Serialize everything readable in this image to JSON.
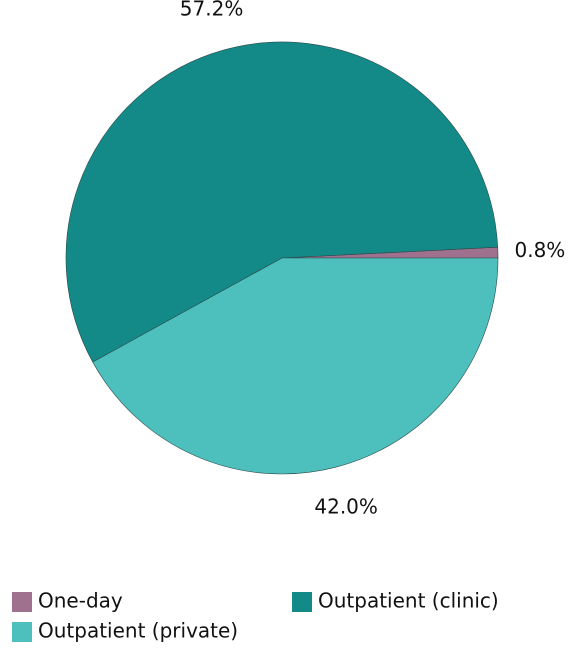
{
  "chart_data": {
    "type": "pie",
    "categories": [
      "One-day",
      "Outpatient (clinic)",
      "Outpatient (private)"
    ],
    "values": [
      0.8,
      57.2,
      42.0
    ],
    "value_labels": [
      "0.8%",
      "57.2%",
      "42.0%"
    ],
    "colors": [
      "#a0708f",
      "#138a87",
      "#4dc0bd"
    ]
  }
}
